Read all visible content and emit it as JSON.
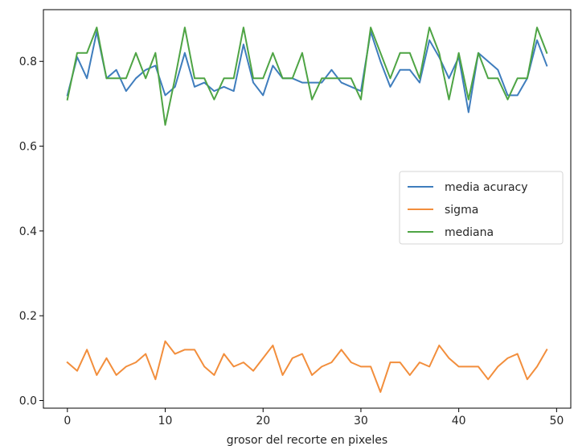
{
  "chart_data": {
    "type": "line",
    "title": "",
    "xlabel": "grosor del recorte en pixeles",
    "ylabel": "",
    "xlim": [
      -2.45,
      51.45
    ],
    "ylim": [
      -0.018,
      0.922
    ],
    "x_ticks": [
      0,
      10,
      20,
      30,
      40,
      50
    ],
    "y_ticks": [
      0.0,
      0.2,
      0.4,
      0.6,
      0.8
    ],
    "x_tick_labels": [
      "0",
      "10",
      "20",
      "30",
      "40",
      "50"
    ],
    "y_tick_labels": [
      "0.0",
      "0.2",
      "0.4",
      "0.6",
      "0.8"
    ],
    "grid": false,
    "legend_position": "center-right",
    "x": [
      0,
      1,
      2,
      3,
      4,
      5,
      6,
      7,
      8,
      9,
      10,
      11,
      12,
      13,
      14,
      15,
      16,
      17,
      18,
      19,
      20,
      21,
      22,
      23,
      24,
      25,
      26,
      27,
      28,
      29,
      30,
      31,
      32,
      33,
      34,
      35,
      36,
      37,
      38,
      39,
      40,
      41,
      42,
      43,
      44,
      45,
      46,
      47,
      48,
      49
    ],
    "series": [
      {
        "name": "media acuracy",
        "color": "#3f7dbd",
        "values": [
          0.72,
          0.81,
          0.76,
          0.87,
          0.76,
          0.78,
          0.73,
          0.76,
          0.78,
          0.79,
          0.72,
          0.74,
          0.82,
          0.74,
          0.75,
          0.73,
          0.74,
          0.73,
          0.84,
          0.75,
          0.72,
          0.79,
          0.76,
          0.76,
          0.75,
          0.75,
          0.75,
          0.78,
          0.75,
          0.74,
          0.73,
          0.87,
          0.8,
          0.74,
          0.78,
          0.78,
          0.75,
          0.85,
          0.81,
          0.76,
          0.81,
          0.68,
          0.82,
          0.8,
          0.78,
          0.72,
          0.72,
          0.76,
          0.85,
          0.79
        ]
      },
      {
        "name": "sigma",
        "color": "#f28e3c",
        "values": [
          0.09,
          0.07,
          0.12,
          0.06,
          0.1,
          0.06,
          0.08,
          0.09,
          0.11,
          0.05,
          0.14,
          0.11,
          0.12,
          0.12,
          0.08,
          0.06,
          0.11,
          0.08,
          0.09,
          0.07,
          0.1,
          0.13,
          0.06,
          0.1,
          0.11,
          0.06,
          0.08,
          0.09,
          0.12,
          0.09,
          0.08,
          0.08,
          0.02,
          0.09,
          0.09,
          0.06,
          0.09,
          0.08,
          0.13,
          0.1,
          0.08,
          0.08,
          0.08,
          0.05,
          0.08,
          0.1,
          0.11,
          0.05,
          0.08,
          0.12
        ]
      },
      {
        "name": "mediana",
        "color": "#4ea444",
        "values": [
          0.71,
          0.82,
          0.82,
          0.88,
          0.76,
          0.76,
          0.76,
          0.82,
          0.76,
          0.82,
          0.65,
          0.76,
          0.88,
          0.76,
          0.76,
          0.71,
          0.76,
          0.76,
          0.88,
          0.76,
          0.76,
          0.82,
          0.76,
          0.76,
          0.82,
          0.71,
          0.76,
          0.76,
          0.76,
          0.76,
          0.71,
          0.88,
          0.82,
          0.76,
          0.82,
          0.82,
          0.76,
          0.88,
          0.82,
          0.71,
          0.82,
          0.71,
          0.82,
          0.76,
          0.76,
          0.71,
          0.76,
          0.76,
          0.88,
          0.82
        ]
      }
    ]
  }
}
